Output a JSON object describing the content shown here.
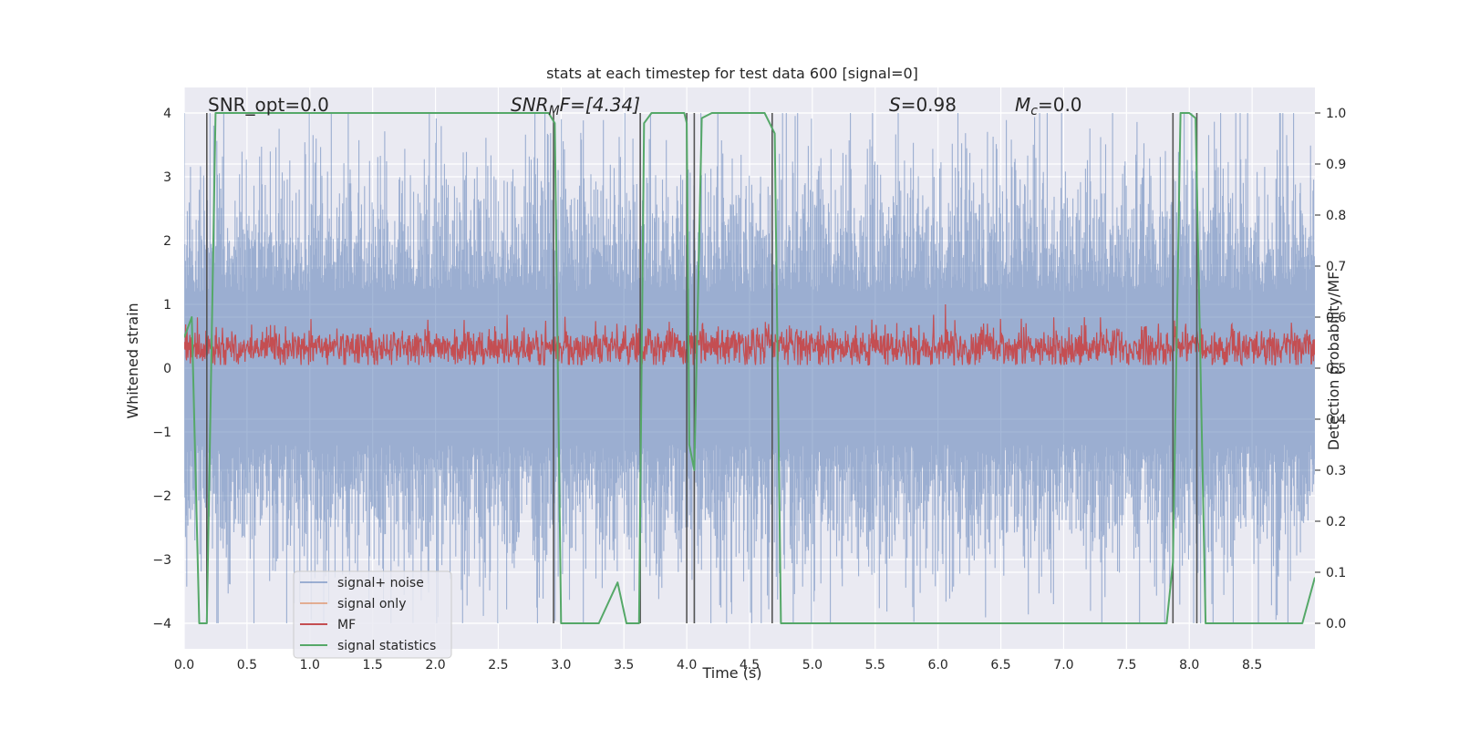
{
  "chart_data": {
    "type": "line",
    "title": "stats at each timestep for test data 600 [signal=0]",
    "xlabel": "Time (s)",
    "ylabel_left": "Whitened strain",
    "ylabel_right": "Detection probability/MF",
    "xlim": [
      0.0,
      9.0
    ],
    "ylim_left": [
      -4.4,
      4.4
    ],
    "ylim_right": [
      -0.05,
      1.05
    ],
    "x_ticks": [
      "0.0",
      "0.5",
      "1.0",
      "1.5",
      "2.0",
      "2.5",
      "3.0",
      "3.5",
      "4.0",
      "4.5",
      "5.0",
      "5.5",
      "6.0",
      "6.5",
      "7.0",
      "7.5",
      "8.0",
      "8.5"
    ],
    "y_ticks_left": [
      "4",
      "3",
      "2",
      "1",
      "0",
      "−1",
      "−2",
      "−3",
      "−4"
    ],
    "y_ticks_right": [
      "1.0",
      "0.9",
      "0.8",
      "0.7",
      "0.6",
      "0.5",
      "0.4",
      "0.3",
      "0.2",
      "0.1",
      "0.0"
    ],
    "grid": true,
    "background": "#eaeaf2",
    "annotations": {
      "snr_opt": "SNR_opt=0.0",
      "snr_mf_sym": "SNR",
      "snr_mf_sub": "M",
      "snr_mf_rest": "F=[4.34]",
      "s_sym": "S",
      "s_rest": "=0.98",
      "mc_sym": "M",
      "mc_sub": "c",
      "mc_rest": "=0.0"
    },
    "legend": {
      "placement": "lower-left",
      "entries": [
        {
          "label": "signal+ noise",
          "color": "#4c72b0"
        },
        {
          "label": "signal only",
          "color": "#dd8452"
        },
        {
          "label": "MF",
          "color": "#c44e52"
        },
        {
          "label": "signal statistics",
          "color": "#55a868"
        }
      ]
    },
    "series": [
      {
        "name": "signal+ noise",
        "axis": "left",
        "color": "#4c72b0",
        "description": "whitened noise envelope, roughly within [-4, 4]"
      },
      {
        "name": "MF",
        "axis": "left",
        "color": "#c44e52",
        "range": [
          0.05,
          1.0
        ]
      },
      {
        "name": "signal statistics",
        "axis": "right",
        "color": "#55a868",
        "x": [
          0.0,
          0.06,
          0.12,
          0.18,
          0.25,
          0.5,
          1.0,
          1.5,
          2.0,
          2.5,
          2.9,
          2.95,
          3.0,
          3.1,
          3.3,
          3.45,
          3.52,
          3.62,
          3.66,
          3.72,
          3.9,
          3.98,
          4.0,
          4.02,
          4.06,
          4.12,
          4.2,
          4.4,
          4.62,
          4.7,
          4.75,
          5.0,
          6.0,
          7.0,
          7.6,
          7.82,
          7.87,
          7.93,
          8.0,
          8.05,
          8.13,
          8.5,
          8.9,
          9.0
        ],
        "y": [
          0.56,
          0.6,
          0.0,
          0.0,
          1.0,
          1.0,
          1.0,
          1.0,
          1.0,
          1.0,
          1.0,
          0.98,
          0.0,
          0.0,
          0.0,
          0.08,
          0.0,
          0.0,
          0.98,
          1.0,
          1.0,
          1.0,
          0.98,
          0.35,
          0.3,
          0.99,
          1.0,
          1.0,
          1.0,
          0.96,
          0.0,
          0.0,
          0.0,
          0.0,
          0.0,
          0.0,
          0.12,
          1.0,
          1.0,
          0.99,
          0.0,
          0.0,
          0.0,
          0.09
        ]
      },
      {
        "name": "detections",
        "axis": "right",
        "color": "#555555",
        "style": "vertical-lines",
        "x": [
          0.18,
          2.94,
          3.63,
          4.0,
          4.06,
          4.68,
          7.87,
          8.06
        ]
      }
    ]
  }
}
